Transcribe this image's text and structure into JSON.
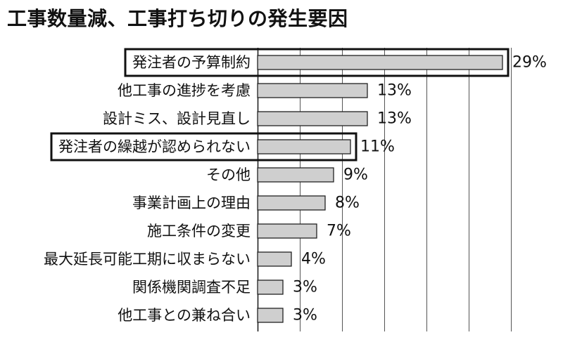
{
  "title": "工事数量減、工事打ち切りの発生要因",
  "colors": {
    "bar_fill": "#cfcfcf",
    "bar_stroke": "#222222",
    "grid": "#555555",
    "text": "#111111"
  },
  "chart_data": {
    "type": "bar",
    "orientation": "horizontal",
    "title": "工事数量減、工事打ち切りの発生要因",
    "xlim": [
      0,
      30
    ],
    "grid": true,
    "legend": "none",
    "categories": [
      "発注者の予算制約",
      "他工事の進捗を考慮",
      "設計ミス、設計見直し",
      "発注者の繰越が認められない",
      "その他",
      "事業計画上の理由",
      "施工条件の変更",
      "最大延長可能工期に収まらない",
      "関係機関調査不足",
      "他工事との兼ね合い"
    ],
    "values": [
      29,
      13,
      13,
      11,
      9,
      8,
      7,
      4,
      3,
      3
    ],
    "labels": [
      "29%",
      "13%",
      "13%",
      "11%",
      "9%",
      "8%",
      "7%",
      "4%",
      "3%",
      "3%"
    ],
    "highlighted": [
      "発注者の予算制約",
      "発注者の繰越が認められない"
    ]
  }
}
